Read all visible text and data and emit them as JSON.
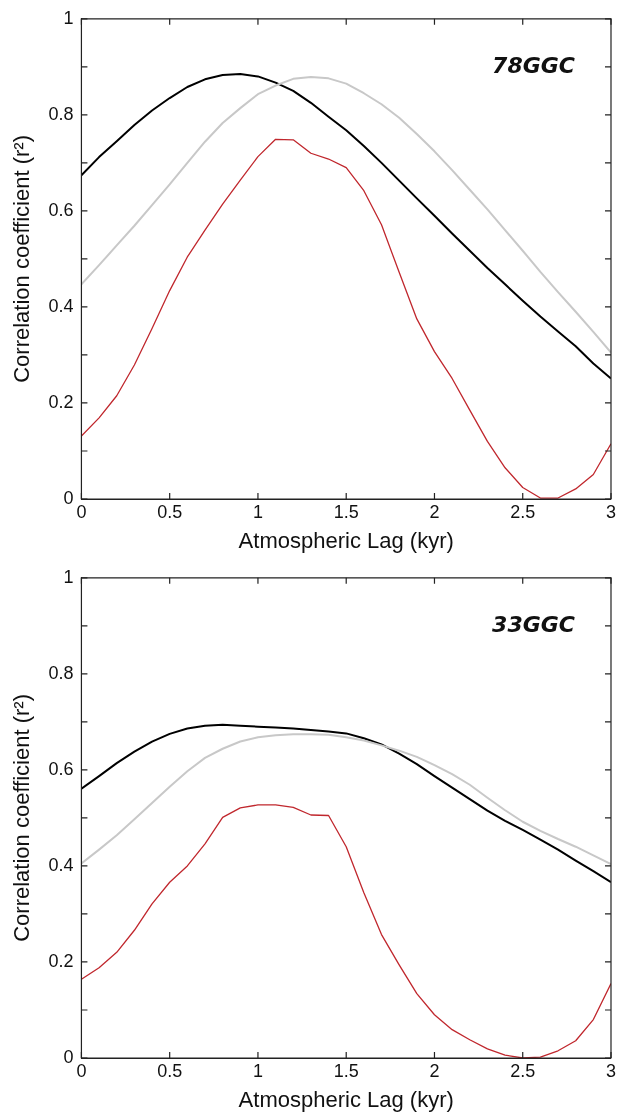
{
  "chart_data": [
    {
      "type": "line",
      "title": "78GGC",
      "xlabel": "Atmospheric Lag (kyr)",
      "ylabel": "Correlation coefficient (r²)",
      "marker": "none",
      "x": [
        0,
        0.1,
        0.2,
        0.3,
        0.4,
        0.5,
        0.6,
        0.7,
        0.8,
        0.9,
        1.0,
        1.1,
        1.2,
        1.3,
        1.4,
        1.5,
        1.6,
        1.7,
        1.8,
        1.9,
        2.0,
        2.1,
        2.2,
        2.3,
        2.4,
        2.5,
        2.6,
        2.7,
        2.8,
        2.9,
        3.0
      ],
      "series": [
        {
          "color": "#c8c8c8",
          "values": [
            0.447,
            0.487,
            0.528,
            0.569,
            0.612,
            0.655,
            0.7,
            0.744,
            0.783,
            0.814,
            0.843,
            0.861,
            0.875,
            0.879,
            0.876,
            0.865,
            0.845,
            0.822,
            0.794,
            0.76,
            0.724,
            0.685,
            0.644,
            0.603,
            0.56,
            0.517,
            0.473,
            0.431,
            0.39,
            0.348,
            0.305
          ]
        },
        {
          "color": "#000000",
          "values": [
            0.674,
            0.712,
            0.745,
            0.779,
            0.809,
            0.835,
            0.858,
            0.874,
            0.883,
            0.885,
            0.88,
            0.867,
            0.85,
            0.825,
            0.796,
            0.768,
            0.735,
            0.7,
            0.663,
            0.626,
            0.59,
            0.553,
            0.517,
            0.481,
            0.447,
            0.413,
            0.38,
            0.349,
            0.318,
            0.282,
            0.251
          ]
        },
        {
          "color": "#c0272d",
          "values": [
            0.131,
            0.169,
            0.215,
            0.279,
            0.355,
            0.434,
            0.504,
            0.56,
            0.614,
            0.664,
            0.713,
            0.749,
            0.748,
            0.72,
            0.708,
            0.69,
            0.642,
            0.571,
            0.472,
            0.375,
            0.307,
            0.251,
            0.185,
            0.12,
            0.065,
            0.024,
            0.002,
            0.002,
            0.021,
            0.051,
            0.115
          ]
        }
      ],
      "xlim": [
        0,
        3
      ],
      "xticks": [
        0,
        0.5,
        1,
        1.5,
        2,
        2.5,
        3
      ],
      "ylim": [
        0,
        1
      ],
      "yticks": [
        0,
        {
          "value": 0.1,
          "label": null
        },
        0.2,
        {
          "value": 0.3,
          "label": null
        },
        0.4,
        {
          "value": 0.5,
          "label": null
        },
        0.6,
        {
          "value": 0.7,
          "label": null
        },
        0.8,
        {
          "value": 0.9,
          "label": null
        },
        1
      ]
    },
    {
      "type": "line",
      "title": "33GGC",
      "xlabel": "Atmospheric Lag (kyr)",
      "ylabel": "Correlation coefficient (r²)",
      "marker": "none",
      "x": [
        0,
        0.1,
        0.2,
        0.3,
        0.4,
        0.5,
        0.6,
        0.7,
        0.8,
        0.9,
        1.0,
        1.1,
        1.2,
        1.3,
        1.4,
        1.5,
        1.6,
        1.7,
        1.8,
        1.9,
        2.0,
        2.1,
        2.2,
        2.3,
        2.4,
        2.5,
        2.6,
        2.7,
        2.8,
        2.9,
        3.0
      ],
      "series": [
        {
          "color": "#c8c8c8",
          "values": [
            0.405,
            0.434,
            0.464,
            0.497,
            0.531,
            0.565,
            0.597,
            0.625,
            0.644,
            0.659,
            0.668,
            0.672,
            0.674,
            0.674,
            0.673,
            0.668,
            0.661,
            0.651,
            0.64,
            0.627,
            0.61,
            0.591,
            0.569,
            0.542,
            0.516,
            0.492,
            0.473,
            0.456,
            0.44,
            0.422,
            0.404
          ]
        },
        {
          "color": "#000000",
          "values": [
            0.561,
            0.587,
            0.614,
            0.638,
            0.659,
            0.675,
            0.686,
            0.692,
            0.694,
            0.692,
            0.69,
            0.688,
            0.686,
            0.683,
            0.68,
            0.676,
            0.666,
            0.653,
            0.634,
            0.612,
            0.587,
            0.563,
            0.539,
            0.515,
            0.494,
            0.475,
            0.455,
            0.434,
            0.411,
            0.389,
            0.366
          ]
        },
        {
          "color": "#c0272d",
          "values": [
            0.164,
            0.188,
            0.22,
            0.266,
            0.321,
            0.366,
            0.4,
            0.446,
            0.501,
            0.521,
            0.527,
            0.527,
            0.522,
            0.506,
            0.505,
            0.44,
            0.344,
            0.257,
            0.194,
            0.134,
            0.09,
            0.059,
            0.038,
            0.019,
            0.006,
            0.0,
            0.002,
            0.015,
            0.036,
            0.08,
            0.155
          ]
        }
      ],
      "xlim": [
        0,
        3
      ],
      "xticks": [
        0,
        0.5,
        1,
        1.5,
        2,
        2.5,
        3
      ],
      "ylim": [
        0,
        1
      ],
      "yticks": [
        0,
        {
          "value": 0.1,
          "label": null
        },
        0.2,
        {
          "value": 0.3,
          "label": null
        },
        0.4,
        {
          "value": 0.5,
          "label": null
        },
        0.6,
        {
          "value": 0.7,
          "label": null
        },
        0.8,
        {
          "value": 0.9,
          "label": null
        },
        1
      ]
    }
  ]
}
